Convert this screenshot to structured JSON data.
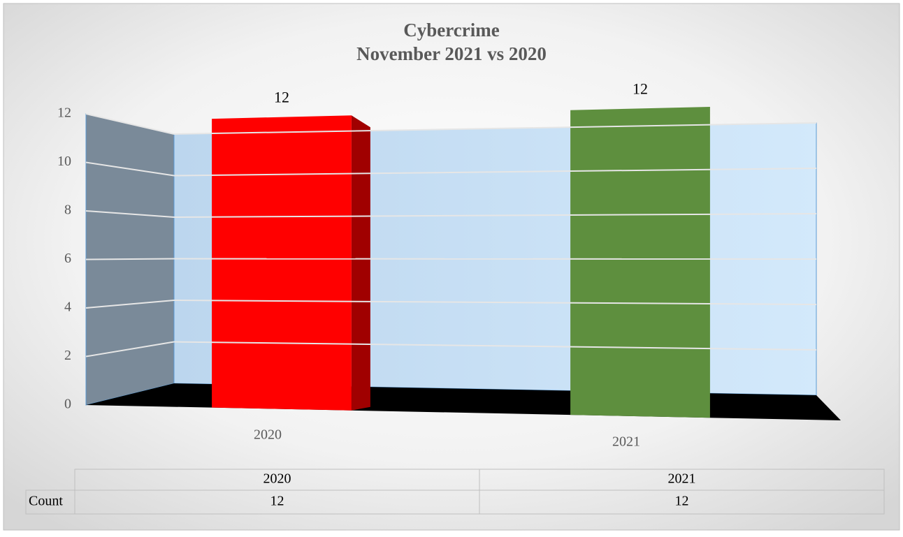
{
  "chart_data": {
    "type": "bar3d",
    "title": "Cybercrime",
    "subtitle": "November 2021 vs 2020",
    "categories": [
      "2020",
      "2021"
    ],
    "series": [
      {
        "name": "Count",
        "colors": [
          "#ff0000",
          "#5e8f3e"
        ],
        "values": [
          12,
          12
        ]
      }
    ],
    "ylim": [
      0,
      12
    ],
    "yticks": [
      0,
      2,
      4,
      6,
      8,
      10,
      12
    ],
    "grid": true,
    "data_table": true
  }
}
